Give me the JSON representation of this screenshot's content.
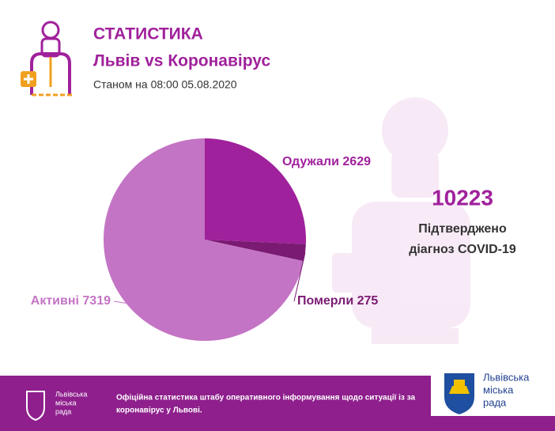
{
  "header": {
    "title": "СТАТИСТИКА",
    "subtitle": "Львів vs Коронавірус",
    "date": "Станом на 08:00 05.08.2020"
  },
  "chart_data": {
    "type": "pie",
    "categories": [
      "Одужали",
      "Померли",
      "Активні"
    ],
    "values": [
      2629,
      275,
      7319
    ],
    "colors": [
      "#a0219c",
      "#7a1a73",
      "#c474c4"
    ],
    "total": 10223,
    "total_label": [
      "Підтверджено",
      "діагноз COVID-19"
    ]
  },
  "footer": {
    "logo_lines": [
      "Львівська",
      "міська",
      "рада"
    ],
    "text_lines": [
      "Офіційна статистика штабу оперативного інформування щодо ситуації із за",
      "коронавірус у Львові."
    ]
  },
  "card": {
    "logo_lines": [
      "Львівська",
      "міська",
      "рада"
    ]
  }
}
